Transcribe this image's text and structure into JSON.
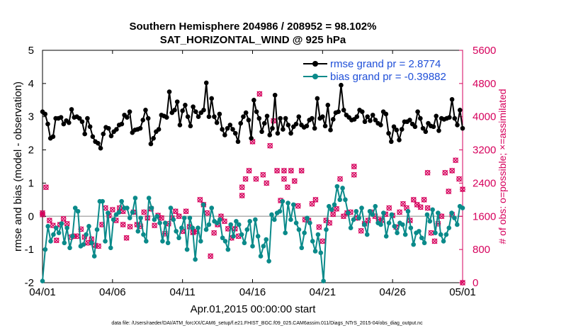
{
  "chart_data": {
    "type": "line",
    "title": "Southern Hemisphere 204986 / 208952 = 98.102%",
    "subtitle": "SAT_HORIZONTAL_WIND @ 925 hPa",
    "xlabel": "Apr.01,2015 00:00:00 start",
    "ylabel": "rmse and bias (model - observation)",
    "y2label": "# of obs: o=possible; ×=assimilated",
    "xlim": [
      0,
      30
    ],
    "ylim": [
      -2,
      5
    ],
    "y2lim": [
      0,
      5600
    ],
    "x_ticks": [
      0,
      5,
      10,
      15,
      20,
      25,
      30
    ],
    "x_tick_labels": [
      "04/01",
      "04/06",
      "04/11",
      "04/16",
      "04/21",
      "04/26",
      "05/01"
    ],
    "y_ticks": [
      -2,
      -1,
      0,
      1,
      2,
      3,
      4,
      5
    ],
    "y2_ticks": [
      0,
      800,
      1600,
      2400,
      3200,
      4000,
      4800,
      5600
    ],
    "zero_line": 0,
    "legend": {
      "position": "top-right"
    },
    "series": [
      {
        "name": "rmse grand pr = 2.8774",
        "color": "#000000",
        "axis": "left",
        "values": [
          3.15,
          3.08,
          2.78,
          2.35,
          2.4,
          2.95,
          2.95,
          2.98,
          2.78,
          2.88,
          2.82,
          3.22,
          2.98,
          3.0,
          2.95,
          2.85,
          2.48,
          2.95,
          2.7,
          2.4,
          2.25,
          2.2,
          2.05,
          2.48,
          2.68,
          2.65,
          2.42,
          2.55,
          2.62,
          2.75,
          2.78,
          3.05,
          2.98,
          3.15,
          2.52,
          2.6,
          2.62,
          2.65,
          2.9,
          3.2,
          2.95,
          2.18,
          2.35,
          2.55,
          2.62,
          3.05,
          3.02,
          2.98,
          3.75,
          3.12,
          3.2,
          3.45,
          2.75,
          3.18,
          3.35,
          3.0,
          2.72,
          3.3,
          3.15,
          3.0,
          3.12,
          3.2,
          4.02,
          3.0,
          3.55,
          3.0,
          2.82,
          3.08,
          2.62,
          2.45,
          2.65,
          2.75,
          2.62,
          2.5,
          2.25,
          2.8,
          3.0,
          3.12,
          2.9,
          2.35,
          3.5,
          3.15,
          2.95,
          2.55,
          2.8,
          3.02,
          2.45,
          2.65,
          3.65,
          2.5,
          2.95,
          2.62,
          2.95,
          2.75,
          2.5,
          2.7,
          2.78,
          3.0,
          2.75,
          2.68,
          2.72,
          2.9,
          2.95,
          2.65,
          3.55,
          2.95,
          3.0,
          2.72,
          3.35,
          2.6,
          2.92,
          3.12,
          3.15,
          3.95,
          3.2,
          3.05,
          2.98,
          2.9,
          2.92,
          3.0,
          3.2,
          3.15,
          2.85,
          3.0,
          2.88,
          3.05,
          2.9,
          2.8,
          2.75,
          3.15,
          3.08,
          2.5,
          2.25,
          2.7,
          2.6,
          2.3,
          2.62,
          2.85,
          2.85,
          2.9,
          2.78,
          2.7,
          3.15,
          2.95,
          2.65,
          2.55,
          2.8,
          2.72,
          2.7,
          3.02,
          2.58,
          2.95,
          2.92,
          2.95,
          2.98,
          3.52,
          2.95,
          2.75,
          3.2,
          2.65
        ]
      },
      {
        "name": "bias grand pr = -0.39882",
        "color": "#0a8a8a",
        "axis": "left",
        "values": [
          -1.95,
          -1.0,
          -0.3,
          -0.75,
          -0.55,
          -0.35,
          -0.5,
          -0.22,
          -0.8,
          -0.35,
          -0.95,
          -0.6,
          0.25,
          0.15,
          -0.9,
          -0.85,
          -0.55,
          -0.3,
          -0.8,
          -1.2,
          -0.4,
          0.45,
          0.45,
          -0.75,
          0.1,
          -0.95,
          -0.1,
          0.05,
          0.12,
          0.45,
          0.25,
          0.25,
          -0.05,
          0.12,
          0.55,
          -0.45,
          -0.05,
          -0.55,
          -0.75,
          0.55,
          0.25,
          -0.1,
          0.0,
          -0.2,
          -0.75,
          -0.2,
          -0.8,
          0.25,
          -0.1,
          -0.45,
          -0.65,
          -0.35,
          -0.05,
          -1.0,
          -0.05,
          -0.35,
          -1.3,
          -0.35,
          -0.75,
          0.35,
          -0.4,
          -0.25,
          0.25,
          -0.15,
          -0.2,
          -0.1,
          -0.65,
          -0.75,
          -1.0,
          -0.25,
          -0.6,
          -0.15,
          -0.25,
          -0.55,
          -0.8,
          -0.4,
          -0.15,
          -0.9,
          -0.1,
          -0.6,
          -1.2,
          -0.9,
          -0.7,
          -1.35,
          0.05,
          -0.1,
          0.1,
          0.15,
          0.45,
          -0.5,
          0.4,
          -0.1,
          0.35,
          -0.2,
          -0.4,
          -0.95,
          -0.5,
          -0.05,
          -0.2,
          -0.75,
          -1.05,
          -0.55,
          -1.1,
          -1.95,
          -0.4,
          0.3,
          0.2,
          0.35,
          0.9,
          0.5,
          0.85,
          0.5,
          0.1,
          -0.35,
          -0.1,
          0.15,
          -0.05,
          0.25,
          -0.25,
          -0.55,
          0.15,
          0.05,
          0.3,
          -0.2,
          -0.25,
          0.1,
          -0.6,
          -0.2,
          0.05,
          -0.3,
          -0.5,
          -0.2,
          -0.25,
          -0.55,
          0.15,
          -0.35,
          -0.85,
          -0.5,
          -0.45,
          -0.65,
          -0.8,
          0.05,
          -0.15,
          0.2,
          -0.5,
          0.1,
          -0.55,
          -0.75,
          -0.55,
          -0.35,
          0.1,
          -0.05,
          -0.25,
          0.3,
          0.25
        ]
      }
    ],
    "obs_counts": {
      "axis": "right",
      "color": "#d6005c",
      "possible_and_assimilated": [
        [
          0.0,
          1680
        ],
        [
          0.25,
          2300
        ],
        [
          0.5,
          1500
        ],
        [
          0.75,
          1380
        ],
        [
          1.0,
          1020
        ],
        [
          1.25,
          1400
        ],
        [
          1.5,
          1540
        ],
        [
          1.75,
          1420
        ],
        [
          2.0,
          1100
        ],
        [
          2.25,
          1120
        ],
        [
          2.5,
          1120
        ],
        [
          2.75,
          1290
        ],
        [
          3.0,
          1100
        ],
        [
          3.25,
          960
        ],
        [
          3.5,
          1050
        ],
        [
          3.75,
          900
        ],
        [
          4.0,
          880
        ],
        [
          4.25,
          1400
        ],
        [
          4.5,
          1800
        ],
        [
          4.75,
          1620
        ],
        [
          5.0,
          1760
        ],
        [
          5.25,
          1500
        ],
        [
          5.5,
          1800
        ],
        [
          5.75,
          1400
        ],
        [
          6.0,
          1080
        ],
        [
          6.25,
          1350
        ],
        [
          6.5,
          1700
        ],
        [
          6.75,
          1400
        ],
        [
          7.0,
          1360
        ],
        [
          7.25,
          1700
        ],
        [
          7.5,
          1560
        ],
        [
          7.75,
          1780
        ],
        [
          8.0,
          1380
        ],
        [
          8.25,
          1620
        ],
        [
          8.5,
          1560
        ],
        [
          8.75,
          1180
        ],
        [
          9.0,
          1420
        ],
        [
          9.25,
          1560
        ],
        [
          9.5,
          1720
        ],
        [
          9.75,
          1600
        ],
        [
          10.0,
          1240
        ],
        [
          10.25,
          1720
        ],
        [
          10.5,
          1350
        ],
        [
          10.75,
          1220
        ],
        [
          11.0,
          1240
        ],
        [
          11.25,
          2000
        ],
        [
          11.5,
          1880
        ],
        [
          11.75,
          1680
        ],
        [
          12.0,
          640
        ],
        [
          12.25,
          1200
        ],
        [
          12.5,
          1400
        ],
        [
          12.75,
          1600
        ],
        [
          13.0,
          1480
        ],
        [
          13.25,
          1300
        ],
        [
          13.5,
          1080
        ],
        [
          13.75,
          1300
        ],
        [
          14.0,
          1120
        ],
        [
          14.25,
          2300
        ],
        [
          14.5,
          2500
        ],
        [
          14.75,
          2700
        ],
        [
          15.0,
          3400
        ],
        [
          15.25,
          2500
        ],
        [
          15.5,
          4550
        ],
        [
          15.75,
          2600
        ],
        [
          16.0,
          2400
        ],
        [
          16.25,
          3300
        ],
        [
          16.5,
          3900
        ],
        [
          16.75,
          2700
        ],
        [
          17.0,
          1980
        ],
        [
          17.25,
          2500
        ],
        [
          17.5,
          2300
        ],
        [
          17.75,
          2700
        ],
        [
          18.0,
          2450
        ],
        [
          18.25,
          1850
        ],
        [
          18.5,
          2700
        ],
        [
          18.75,
          1520
        ],
        [
          19.0,
          1500
        ],
        [
          19.25,
          1900
        ],
        [
          19.5,
          2000
        ],
        [
          19.75,
          1340
        ],
        [
          20.0,
          1000
        ],
        [
          20.25,
          1500
        ],
        [
          20.5,
          1440
        ],
        [
          20.75,
          1650
        ],
        [
          21.0,
          1780
        ],
        [
          21.25,
          2500
        ],
        [
          21.5,
          1600
        ],
        [
          21.75,
          1680
        ],
        [
          22.0,
          1700
        ],
        [
          22.25,
          2800
        ],
        [
          22.5,
          1560
        ],
        [
          22.75,
          1250
        ],
        [
          23.0,
          1420
        ],
        [
          23.25,
          1500
        ],
        [
          23.5,
          1700
        ],
        [
          23.75,
          1600
        ],
        [
          24.0,
          1520
        ],
        [
          24.25,
          1500
        ],
        [
          24.5,
          1650
        ],
        [
          24.75,
          1800
        ],
        [
          25.0,
          1620
        ],
        [
          25.25,
          1340
        ],
        [
          25.5,
          1700
        ],
        [
          25.75,
          1900
        ],
        [
          26.0,
          1800
        ],
        [
          26.25,
          1500
        ],
        [
          26.5,
          2000
        ],
        [
          26.75,
          1880
        ],
        [
          27.0,
          1820
        ],
        [
          27.25,
          2000
        ],
        [
          27.5,
          1800
        ],
        [
          27.75,
          1200
        ],
        [
          28.0,
          1000
        ],
        [
          28.25,
          1420
        ],
        [
          28.5,
          1600
        ],
        [
          28.75,
          2650
        ],
        [
          29.0,
          2200
        ],
        [
          29.25,
          2700
        ],
        [
          29.5,
          2950
        ],
        [
          29.75,
          2500
        ],
        [
          30.0,
          2250
        ]
      ],
      "extra_points": [
        [
          0.0,
          1640
        ],
        [
          5.75,
          1720
        ],
        [
          10.75,
          1210
        ],
        [
          14.25,
          2100
        ],
        [
          17.25,
          2700
        ],
        [
          22.25,
          2600
        ],
        [
          27.5,
          2650
        ],
        [
          29.25,
          1640
        ],
        [
          30.0,
          0
        ]
      ]
    },
    "footnote": "data file: /Users/raeder/DAI/ATM_forcXX/CAM6_setup/f.e21.FHIST_BGC.f09_025.CAM6assim.011/Diags_NTrS_2015-04/obs_diag_output.nc"
  }
}
